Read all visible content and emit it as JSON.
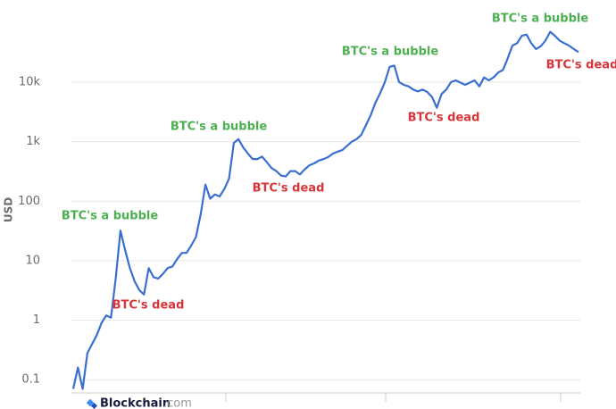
{
  "chart_data": {
    "type": "line",
    "y_label": "USD",
    "ylim": [
      0.06,
      85000
    ],
    "log_scale": true,
    "grid": true,
    "yticks": [
      0.1,
      1,
      10,
      100,
      {
        "value": 1000,
        "label": "1k"
      },
      {
        "value": 10000,
        "label": "10k"
      }
    ],
    "color": "#3a6fd0",
    "values": [
      0.07,
      0.16,
      0.07,
      0.28,
      0.4,
      0.56,
      0.9,
      1.2,
      1.1,
      5,
      32,
      15,
      7.5,
      4.5,
      3.2,
      2.7,
      7.5,
      5.3,
      5,
      6,
      7.5,
      8,
      10.6,
      13.5,
      13.5,
      18,
      25,
      60,
      190,
      110,
      130,
      120,
      160,
      240,
      950,
      1100,
      800,
      630,
      510,
      510,
      560,
      450,
      360,
      320,
      270,
      260,
      320,
      320,
      280,
      340,
      400,
      430,
      480,
      510,
      550,
      630,
      680,
      720,
      850,
      1000,
      1100,
      1300,
      1900,
      2800,
      4500,
      6500,
      10000,
      18000,
      19000,
      10000,
      9000,
      8500,
      7500,
      7000,
      7500,
      6800,
      5600,
      3700,
      6300,
      7500,
      10000,
      10700,
      9800,
      9000,
      9800,
      10700,
      8500,
      12000,
      10700,
      12000,
      14500,
      16000,
      25000,
      41000,
      45000,
      60000,
      63000,
      45000,
      36000,
      40000,
      50000,
      70000,
      60000,
      50000,
      45000,
      41000,
      36000,
      32000
    ],
    "annotations": [
      {
        "text": "BTC's a bubble",
        "color": "#4caf50"
      },
      {
        "text": "BTC's dead",
        "color": "#d9343a"
      },
      {
        "text": "BTC's a bubble",
        "color": "#4caf50"
      },
      {
        "text": "BTC's dead",
        "color": "#d9343a"
      },
      {
        "text": "BTC's a bubble",
        "color": "#4caf50"
      },
      {
        "text": "BTC's dead",
        "color": "#d9343a"
      },
      {
        "text": "BTC's a bubble",
        "color": "#4caf50"
      },
      {
        "text": "BTC's dead",
        "color": "#d9343a"
      }
    ],
    "source": "Blockchain",
    "source_suffix": ".com"
  }
}
